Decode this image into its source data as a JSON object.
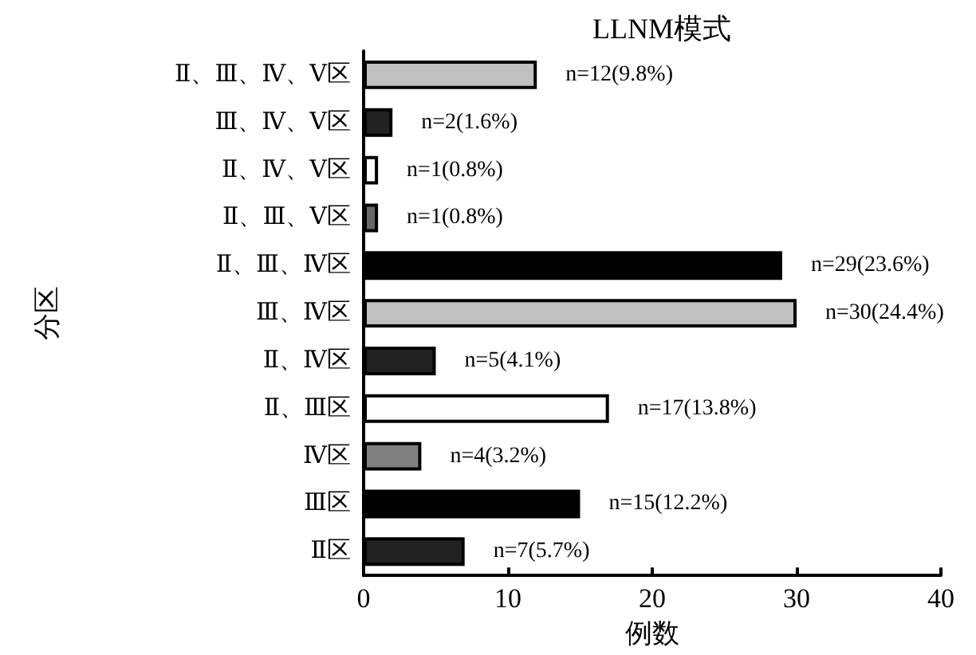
{
  "chart_data": {
    "type": "bar",
    "orientation": "horizontal",
    "title": "LLNM模式",
    "xlabel": "例数",
    "ylabel": "分区",
    "categories": [
      "Ⅱ、Ⅲ、Ⅳ、Ⅴ区",
      "Ⅲ、Ⅳ、Ⅴ区",
      "Ⅱ、Ⅳ、Ⅴ区",
      "Ⅱ、Ⅲ、Ⅴ区",
      "Ⅱ、Ⅲ、Ⅳ区",
      "Ⅲ、Ⅳ区",
      "Ⅱ、Ⅳ区",
      "Ⅱ、Ⅲ区",
      "Ⅳ区",
      "Ⅲ区",
      "Ⅱ区"
    ],
    "values": [
      12,
      2,
      1,
      1,
      29,
      30,
      5,
      17,
      4,
      15,
      7
    ],
    "colors": [
      "#c0c0c0",
      "#222222",
      "#ffffff",
      "#666666",
      "#000000",
      "#c0c0c0",
      "#222222",
      "#ffffff",
      "#808080",
      "#000000",
      "#222222"
    ],
    "value_labels": [
      "n=12(9.8%)",
      "n=2(1.6%)",
      "n=1(0.8%)",
      "n=1(0.8%)",
      "n=29(23.6%)",
      "n=30(24.4%)",
      "n=5(4.1%)",
      "n=17(13.8%)",
      "n=4(3.2%)",
      "n=15(12.2%)",
      "n=7(5.7%)"
    ],
    "xlim": [
      0,
      40
    ],
    "xticks": [
      0,
      10,
      20,
      30,
      40
    ],
    "grid": false
  }
}
